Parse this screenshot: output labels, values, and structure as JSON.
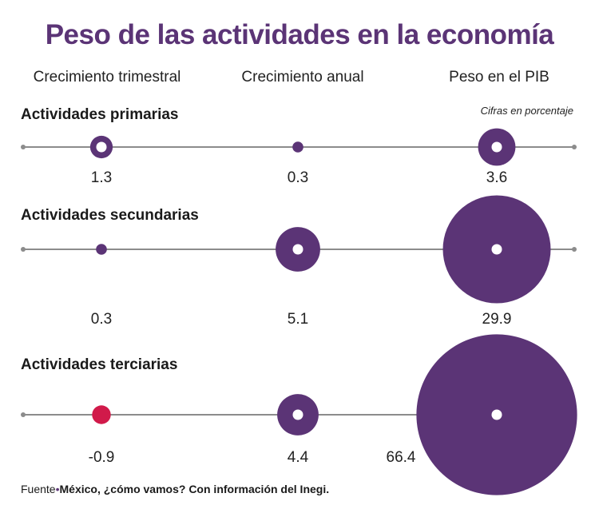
{
  "title": "Peso de las actividades en la economía",
  "columns": [
    "Crecimiento trimestral",
    "Crecimiento anual",
    "Peso en el PIB"
  ],
  "unit_note": "Cifras en porcentaje",
  "source": {
    "prefix": "Fuente",
    "separator": "•",
    "text": "México, ¿cómo vamos? Con información del Inegi."
  },
  "colors": {
    "title": "#5b3476",
    "bubble": "#5b3476",
    "negative": "#d11a4a",
    "axis": "#8c8c8c"
  },
  "chart_data": {
    "type": "scatter",
    "encoding": "bubble area proportional to value; negative values shown in red",
    "title": "Peso de las actividades en la economía",
    "columns": [
      "Crecimiento trimestral",
      "Crecimiento anual",
      "Peso en el PIB"
    ],
    "rows": [
      {
        "name": "Actividades primarias",
        "values": [
          1.3,
          0.3,
          3.6
        ],
        "labels": [
          "1.3",
          "0.3",
          "3.6"
        ]
      },
      {
        "name": "Actividades secundarias",
        "values": [
          0.3,
          5.1,
          29.9
        ],
        "labels": [
          "0.3",
          "5.1",
          "29.9"
        ]
      },
      {
        "name": "Actividades terciarias",
        "values": [
          -0.9,
          4.4,
          66.4
        ],
        "labels": [
          "-0.9",
          "4.4",
          "66.4"
        ]
      }
    ]
  }
}
